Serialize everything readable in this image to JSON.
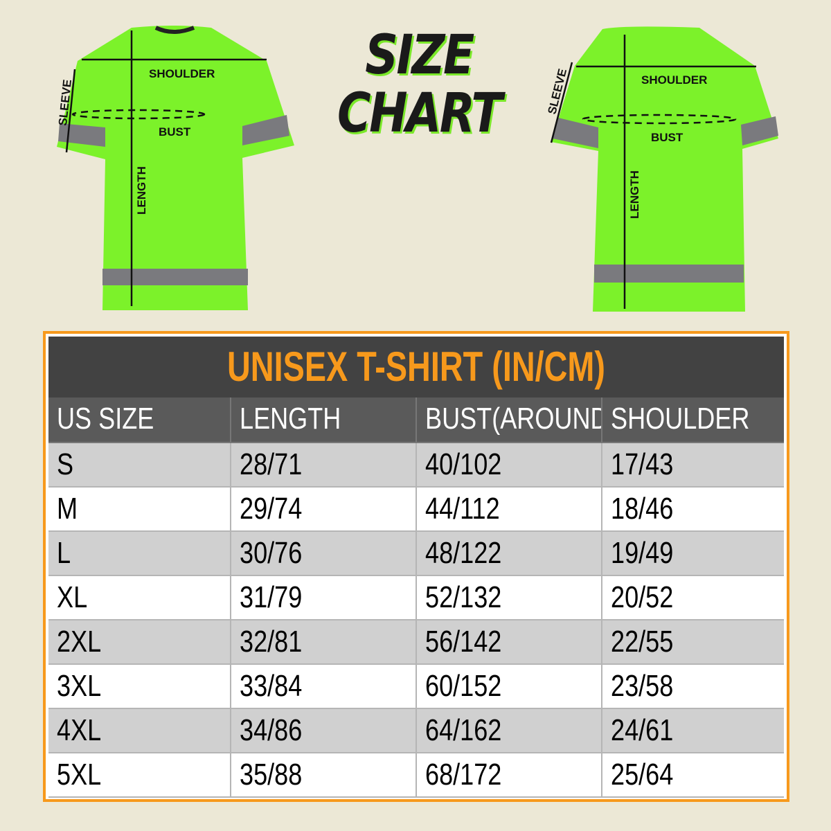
{
  "heading": {
    "line1": "SIZE",
    "line2": "CHART"
  },
  "front_shirt": {
    "labels": {
      "shoulder": "SHOULDER",
      "sleeve": "SLEEVE",
      "bust": "BUST",
      "length": "LENGTH"
    }
  },
  "back_shirt": {
    "labels": {
      "shoulder": "SHOULDER",
      "sleeve": "SLEEVE",
      "bust": "BUST",
      "length": "LENGTH"
    }
  },
  "colors": {
    "shirt": "#7cf22a",
    "reflective_band": "#7a7a7e",
    "accent_orange": "#f7991c",
    "title_bar": "#424242",
    "header_row": "#5a5a5a",
    "background": "#ece8d6"
  },
  "table": {
    "title": "UNISEX T-SHIRT (IN/CM)",
    "columns": [
      "US SIZE",
      "LENGTH",
      "BUST(AROUND)",
      "SHOULDER"
    ],
    "rows": [
      [
        "S",
        "28/71",
        "40/102",
        "17/43"
      ],
      [
        "M",
        "29/74",
        "44/112",
        "18/46"
      ],
      [
        "L",
        "30/76",
        "48/122",
        "19/49"
      ],
      [
        "XL",
        "31/79",
        "52/132",
        "20/52"
      ],
      [
        "2XL",
        "32/81",
        "56/142",
        "22/55"
      ],
      [
        "3XL",
        "33/84",
        "60/152",
        "23/58"
      ],
      [
        "4XL",
        "34/86",
        "64/162",
        "24/61"
      ],
      [
        "5XL",
        "35/88",
        "68/172",
        "25/64"
      ]
    ]
  }
}
